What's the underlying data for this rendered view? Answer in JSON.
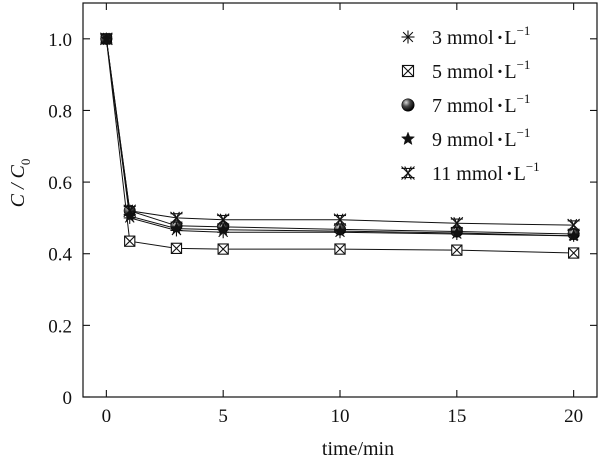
{
  "chart_data": {
    "type": "line",
    "title": "",
    "xlabel": "time/min",
    "ylabel": "C / C0",
    "ylabel_main": "C / C",
    "ylabel_sub": "0",
    "xlim": [
      -1.0,
      21.0
    ],
    "ylim": [
      0,
      1.1
    ],
    "xticks": [
      0,
      5,
      10,
      15,
      20
    ],
    "xtick_labels": [
      "0",
      "5",
      "10",
      "15",
      "20"
    ],
    "yticks": [
      0,
      0.2,
      0.4,
      0.6,
      0.8,
      1.0
    ],
    "ytick_labels": [
      "0",
      "0.2",
      "0.4",
      "0.6",
      "0.8",
      "1.0"
    ],
    "grid": false,
    "legend_position": "top-right",
    "series": [
      {
        "name": "3 mmol·L−1",
        "label_main": "3 mmol",
        "label_unit": "L",
        "label_sup": "−1",
        "marker": "asterisk",
        "x": [
          0,
          1,
          3,
          5,
          10,
          15,
          20
        ],
        "y": [
          1.0,
          0.5,
          0.465,
          0.46,
          0.46,
          0.455,
          0.45
        ]
      },
      {
        "name": "5 mmol·L−1",
        "label_main": "5 mmol",
        "label_unit": "L",
        "label_sup": "−1",
        "marker": "square-x",
        "x": [
          0,
          1,
          3,
          5,
          10,
          15,
          20
        ],
        "y": [
          1.0,
          0.435,
          0.415,
          0.413,
          0.413,
          0.41,
          0.402
        ]
      },
      {
        "name": "7 mmol·L−1",
        "label_main": "7 mmol",
        "label_unit": "L",
        "label_sup": "−1",
        "marker": "sphere",
        "x": [
          0,
          1,
          3,
          5,
          10,
          15,
          20
        ],
        "y": [
          1.0,
          0.52,
          0.478,
          0.475,
          0.468,
          0.462,
          0.455
        ]
      },
      {
        "name": "9 mmol·L−1",
        "label_main": "9 mmol",
        "label_unit": "L",
        "label_sup": "−1",
        "marker": "star",
        "x": [
          0,
          1,
          3,
          5,
          10,
          15,
          20
        ],
        "y": [
          1.0,
          0.505,
          0.47,
          0.467,
          0.463,
          0.458,
          0.45
        ]
      },
      {
        "name": "11 mmol·L−1",
        "label_main": "11 mmol",
        "label_unit": "L",
        "label_sup": "−1",
        "marker": "box-x",
        "x": [
          0,
          1,
          3,
          5,
          10,
          15,
          20
        ],
        "y": [
          1.0,
          0.52,
          0.5,
          0.495,
          0.495,
          0.485,
          0.48
        ]
      }
    ]
  }
}
